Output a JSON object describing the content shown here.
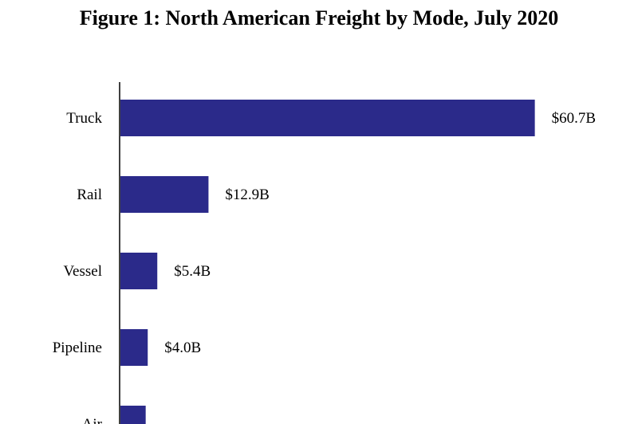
{
  "chart_data": {
    "type": "bar",
    "orientation": "horizontal",
    "title": "Figure 1: North American Freight by Mode, July 2020",
    "categories": [
      "Truck",
      "Rail",
      "Vessel",
      "Pipeline",
      "Air"
    ],
    "values": [
      60.7,
      12.9,
      5.4,
      4.0,
      3.7
    ],
    "value_labels": [
      "$60.7B",
      "$12.9B",
      "$5.4B",
      "$4.0B",
      ""
    ],
    "xlim": [
      0,
      66
    ],
    "grid": false,
    "bar_color": "#2b2a8a"
  }
}
